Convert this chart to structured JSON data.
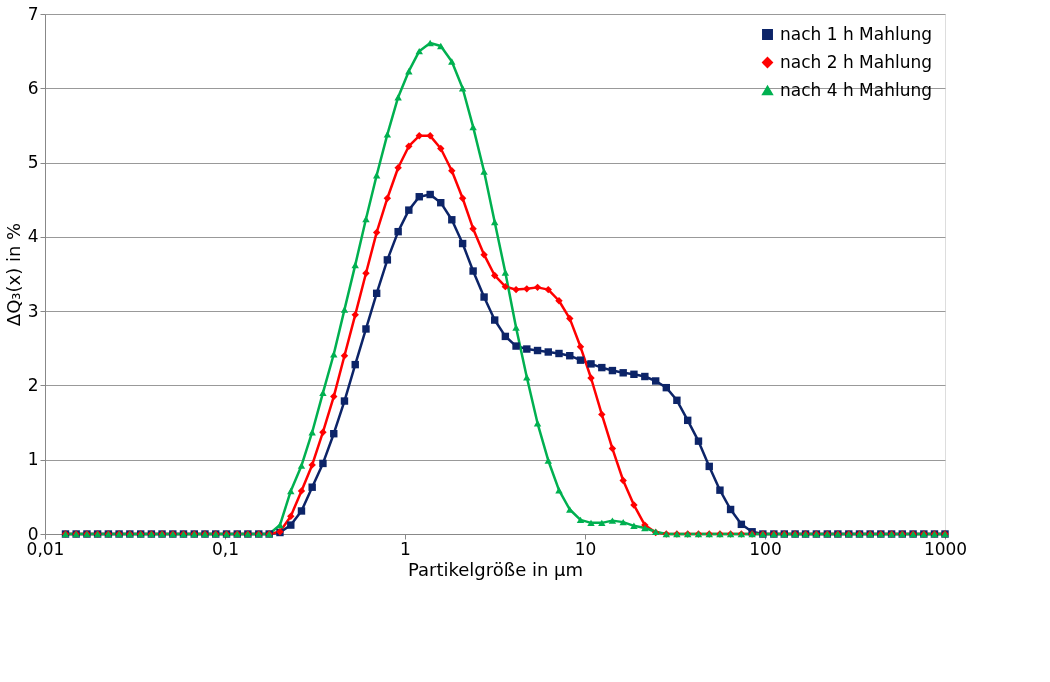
{
  "chart_data": {
    "type": "line",
    "xlabel": "Partikelgröße in µm",
    "ylabel": "ΔQ₃(x) in %",
    "log": "x",
    "grid": "y",
    "legend": "top right",
    "line_style": "solid",
    "x": [
      0.013,
      0.0149,
      0.0171,
      0.0196,
      0.0225,
      0.0258,
      0.0296,
      0.034,
      0.039,
      0.0447,
      0.0513,
      0.0588,
      0.0675,
      0.0774,
      0.0888,
      0.102,
      0.117,
      0.134,
      0.154,
      0.176,
      0.202,
      0.232,
      0.266,
      0.305,
      0.35,
      0.402,
      0.461,
      0.529,
      0.607,
      0.696,
      0.798,
      0.916,
      1.05,
      1.2,
      1.38,
      1.58,
      1.82,
      2.09,
      2.39,
      2.75,
      3.15,
      3.61,
      4.14,
      4.75,
      5.45,
      6.25,
      7.17,
      8.23,
      9.44,
      10.8,
      12.4,
      14.2,
      16.3,
      18.7,
      21.5,
      24.7,
      28.3,
      32.4,
      37.2,
      42.7,
      49.0,
      56.2,
      64.4,
      73.9,
      84.8,
      97.3,
      112,
      128,
      147,
      168,
      193,
      222,
      254,
      292,
      335,
      384,
      440,
      505,
      579,
      665,
      763,
      874,
      1000
    ],
    "xlim": [
      0.01,
      1000
    ],
    "xticks": [
      {
        "value": 0.01,
        "label": "0,01"
      },
      {
        "value": 0.1,
        "label": "0,1"
      },
      1,
      10,
      100,
      1000
    ],
    "ylim": [
      0,
      7
    ],
    "yticks": [
      0,
      1,
      2,
      3,
      4,
      5,
      6,
      7
    ],
    "series": [
      {
        "name": "nach 1 h Mahlung",
        "color": "#0c2468",
        "marker": "square",
        "values": [
          0,
          0,
          0,
          0,
          0,
          0,
          0,
          0,
          0,
          0,
          0,
          0,
          0,
          0,
          0,
          0,
          0,
          0,
          0,
          0,
          0.02,
          0.12,
          0.31,
          0.63,
          0.95,
          1.35,
          1.79,
          2.28,
          2.76,
          3.24,
          3.69,
          4.07,
          4.36,
          4.54,
          4.57,
          4.46,
          4.23,
          3.91,
          3.54,
          3.19,
          2.88,
          2.66,
          2.53,
          2.49,
          2.47,
          2.45,
          2.43,
          2.4,
          2.34,
          2.29,
          2.24,
          2.2,
          2.17,
          2.15,
          2.12,
          2.06,
          1.97,
          1.8,
          1.53,
          1.25,
          0.91,
          0.59,
          0.33,
          0.13,
          0.03,
          0,
          0,
          0,
          0,
          0,
          0,
          0,
          0,
          0,
          0,
          0,
          0,
          0,
          0,
          0,
          0,
          0,
          0
        ]
      },
      {
        "name": "nach 2 h Mahlung",
        "color": "#ff0000",
        "marker": "diamond",
        "values": [
          0,
          0,
          0,
          0,
          0,
          0,
          0,
          0,
          0,
          0,
          0,
          0,
          0,
          0,
          0,
          0,
          0,
          0,
          0,
          0,
          0.03,
          0.24,
          0.58,
          0.93,
          1.37,
          1.85,
          2.4,
          2.95,
          3.51,
          4.06,
          4.52,
          4.93,
          5.22,
          5.36,
          5.36,
          5.19,
          4.89,
          4.52,
          4.11,
          3.76,
          3.48,
          3.33,
          3.29,
          3.3,
          3.32,
          3.29,
          3.14,
          2.9,
          2.52,
          2.1,
          1.61,
          1.15,
          0.72,
          0.39,
          0.12,
          0.02,
          0,
          0,
          0,
          0,
          0,
          0,
          0,
          0,
          0,
          0,
          0,
          0,
          0,
          0,
          0,
          0,
          0,
          0,
          0,
          0,
          0,
          0,
          0,
          0,
          0,
          0,
          0
        ]
      },
      {
        "name": "nach 4 h Mahlung",
        "color": "#00b050",
        "marker": "triangle",
        "values": [
          0,
          0,
          0,
          0,
          0,
          0,
          0,
          0,
          0,
          0,
          0,
          0,
          0,
          0,
          0,
          0,
          0,
          0,
          0,
          0,
          0.12,
          0.58,
          0.92,
          1.37,
          1.9,
          2.42,
          3.02,
          3.62,
          4.24,
          4.83,
          5.38,
          5.88,
          6.23,
          6.5,
          6.61,
          6.57,
          6.36,
          6.0,
          5.48,
          4.88,
          4.2,
          3.52,
          2.78,
          2.11,
          1.49,
          0.99,
          0.59,
          0.33,
          0.19,
          0.15,
          0.15,
          0.18,
          0.16,
          0.11,
          0.08,
          0.03,
          0,
          0,
          0,
          0,
          0,
          0,
          0,
          0,
          0,
          0,
          0,
          0,
          0,
          0,
          0,
          0,
          0,
          0,
          0,
          0,
          0,
          0,
          0,
          0,
          0,
          0,
          0
        ]
      }
    ]
  }
}
